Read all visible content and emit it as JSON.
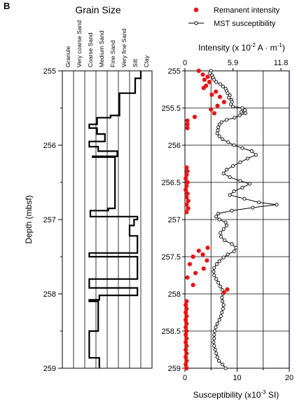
{
  "panel_label": "B",
  "chart_data": [
    {
      "type": "line",
      "title": "Grain Size",
      "ylabel": "Depth (mbsf)",
      "ylim": [
        255,
        259
      ],
      "y_ticks": [
        "255",
        "256",
        "257",
        "258",
        "259"
      ],
      "categories": [
        "Granule",
        "Very coarse Sand",
        "Coarse Sand",
        "Medium Sand",
        "Fine Sand",
        "Very fine Sand",
        "Silt",
        "Clay"
      ],
      "series": [
        {
          "points": [
            {
              "depth": 255.0,
              "grain": 7.0
            },
            {
              "depth": 255.1,
              "grain": 7.0
            },
            {
              "depth": 255.1,
              "grain": 6.5
            },
            {
              "depth": 255.3,
              "grain": 6.5
            },
            {
              "depth": 255.3,
              "grain": 5.1
            },
            {
              "depth": 255.6,
              "grain": 5.1
            },
            {
              "depth": 255.6,
              "grain": 4.3
            },
            {
              "depth": 255.63,
              "grain": 4.3
            },
            {
              "depth": 255.63,
              "grain": 3.1
            },
            {
              "depth": 255.72,
              "grain": 3.1
            },
            {
              "depth": 255.72,
              "grain": 2.4
            },
            {
              "depth": 255.77,
              "grain": 2.4
            },
            {
              "depth": 255.77,
              "grain": 3.1
            },
            {
              "depth": 255.85,
              "grain": 3.1
            },
            {
              "depth": 255.85,
              "grain": 3.8
            },
            {
              "depth": 255.95,
              "grain": 3.8
            },
            {
              "depth": 255.95,
              "grain": 2.4
            },
            {
              "depth": 256.02,
              "grain": 2.4
            },
            {
              "depth": 256.02,
              "grain": 3.2
            },
            {
              "depth": 256.08,
              "grain": 3.2
            },
            {
              "depth": 256.08,
              "grain": 4.9
            },
            {
              "depth": 256.15,
              "grain": 4.9
            },
            {
              "depth": 256.15,
              "grain": 2.7
            },
            {
              "depth": 256.16,
              "grain": 2.7
            },
            {
              "depth": 256.16,
              "grain": 4.7
            },
            {
              "depth": 256.85,
              "grain": 4.7
            },
            {
              "depth": 256.85,
              "grain": 4.1
            },
            {
              "depth": 256.88,
              "grain": 4.1
            },
            {
              "depth": 256.88,
              "grain": 2.5
            },
            {
              "depth": 256.96,
              "grain": 2.5
            },
            {
              "depth": 256.96,
              "grain": 6.7
            },
            {
              "depth": 257.0,
              "grain": 6.7
            },
            {
              "depth": 257.0,
              "grain": 6.4
            },
            {
              "depth": 257.08,
              "grain": 6.4
            },
            {
              "depth": 257.08,
              "grain": 6.0
            },
            {
              "depth": 257.22,
              "grain": 6.0
            },
            {
              "depth": 257.22,
              "grain": 6.7
            },
            {
              "depth": 257.45,
              "grain": 6.7
            },
            {
              "depth": 257.45,
              "grain": 2.4
            },
            {
              "depth": 257.5,
              "grain": 2.4
            },
            {
              "depth": 257.5,
              "grain": 6.7
            },
            {
              "depth": 257.8,
              "grain": 6.7
            },
            {
              "depth": 257.8,
              "grain": 2.4
            },
            {
              "depth": 257.92,
              "grain": 2.4
            },
            {
              "depth": 257.92,
              "grain": 6.7
            },
            {
              "depth": 258.02,
              "grain": 6.7
            },
            {
              "depth": 258.02,
              "grain": 3.3
            },
            {
              "depth": 258.08,
              "grain": 3.3
            },
            {
              "depth": 258.08,
              "grain": 2.4
            },
            {
              "depth": 258.1,
              "grain": 2.4
            },
            {
              "depth": 258.1,
              "grain": 3.2
            },
            {
              "depth": 258.5,
              "grain": 3.2
            },
            {
              "depth": 258.5,
              "grain": 2.4
            },
            {
              "depth": 258.86,
              "grain": 2.4
            },
            {
              "depth": 258.86,
              "grain": 3.3
            },
            {
              "depth": 259.0,
              "grain": 3.3
            }
          ]
        }
      ]
    },
    {
      "type": "scatter",
      "legend": [
        "Remanent intensity",
        "MST susceptibility"
      ],
      "legend_position": "top",
      "x_top_label": "Intensity (x 10-2 A · m-1)",
      "x_top_ticks": [
        "0",
        "5.9",
        "11.8"
      ],
      "x_top_range": [
        0,
        11.8
      ],
      "x_bottom_label": "Susceptibility (x10-3 SI)",
      "x_bottom_ticks": [
        "0",
        "10",
        "20"
      ],
      "x_bottom_range": [
        0,
        20
      ],
      "y_ticks": [
        "255",
        "255.5",
        "256",
        "256.5",
        "257",
        "257.5",
        "258",
        "258.5",
        "259"
      ],
      "ylim": [
        255,
        259
      ],
      "grid": "vertical at 5, 10, 15 and horizontal every 0.5",
      "series": [
        {
          "name": "Remanent intensity",
          "color": "#ee1111",
          "points": [
            {
              "depth": 255.0,
              "x": 1.7
            },
            {
              "depth": 255.05,
              "x": 2.2
            },
            {
              "depth": 255.08,
              "x": 2.8
            },
            {
              "depth": 255.12,
              "x": 2.4
            },
            {
              "depth": 255.15,
              "x": 3.0
            },
            {
              "depth": 255.2,
              "x": 2.6
            },
            {
              "depth": 255.23,
              "x": 2.3
            },
            {
              "depth": 255.28,
              "x": 3.8
            },
            {
              "depth": 255.32,
              "x": 3.3
            },
            {
              "depth": 255.35,
              "x": 4.3
            },
            {
              "depth": 255.42,
              "x": 4.8
            },
            {
              "depth": 255.47,
              "x": 4.0
            },
            {
              "depth": 255.52,
              "x": 3.2
            },
            {
              "depth": 255.57,
              "x": 3.6
            },
            {
              "depth": 255.62,
              "x": 1.2
            },
            {
              "depth": 255.67,
              "x": 0.3
            },
            {
              "depth": 255.72,
              "x": 0.3
            },
            {
              "depth": 255.77,
              "x": 0.3
            },
            {
              "depth": 256.3,
              "x": 0.2
            },
            {
              "depth": 256.35,
              "x": 0.3
            },
            {
              "depth": 256.4,
              "x": 0.2
            },
            {
              "depth": 256.45,
              "x": 0.1
            },
            {
              "depth": 256.5,
              "x": 0.3
            },
            {
              "depth": 256.55,
              "x": 0.2
            },
            {
              "depth": 256.6,
              "x": 0.1
            },
            {
              "depth": 256.65,
              "x": 0.3
            },
            {
              "depth": 256.7,
              "x": 0.2
            },
            {
              "depth": 256.75,
              "x": 0.4
            },
            {
              "depth": 256.8,
              "x": 0.2
            },
            {
              "depth": 256.85,
              "x": 0.4
            },
            {
              "depth": 256.9,
              "x": 0.2
            },
            {
              "depth": 257.38,
              "x": 2.8
            },
            {
              "depth": 257.42,
              "x": 1.7
            },
            {
              "depth": 257.47,
              "x": 2.2
            },
            {
              "depth": 257.5,
              "x": 1.0
            },
            {
              "depth": 257.55,
              "x": 2.7
            },
            {
              "depth": 257.6,
              "x": 0.6
            },
            {
              "depth": 257.66,
              "x": 2.3
            },
            {
              "depth": 257.72,
              "x": 1.3
            },
            {
              "depth": 257.78,
              "x": 0.3
            },
            {
              "depth": 257.88,
              "x": 1.0
            },
            {
              "depth": 257.94,
              "x": 5.2
            },
            {
              "depth": 257.98,
              "x": 4.8
            },
            {
              "depth": 258.1,
              "x": 0.2
            },
            {
              "depth": 258.15,
              "x": 0.1
            },
            {
              "depth": 258.2,
              "x": 0.2
            },
            {
              "depth": 258.25,
              "x": 0.1
            },
            {
              "depth": 258.3,
              "x": 0.2
            },
            {
              "depth": 258.35,
              "x": 0.1
            },
            {
              "depth": 258.4,
              "x": 0.2
            },
            {
              "depth": 258.45,
              "x": 0.1
            },
            {
              "depth": 258.5,
              "x": 0.2
            },
            {
              "depth": 258.55,
              "x": 0.1
            },
            {
              "depth": 258.6,
              "x": 0.2
            },
            {
              "depth": 258.65,
              "x": 0.1
            },
            {
              "depth": 258.7,
              "x": 0.2
            },
            {
              "depth": 258.75,
              "x": 0.1
            },
            {
              "depth": 258.8,
              "x": 0.2
            },
            {
              "depth": 258.85,
              "x": 0.1
            },
            {
              "depth": 258.9,
              "x": 0.2
            },
            {
              "depth": 258.95,
              "x": 0.1
            },
            {
              "depth": 259.0,
              "x": 0.2
            }
          ]
        },
        {
          "name": "MST susceptibility",
          "color": "#000000",
          "points": [
            {
              "depth": 255.0,
              "x": 5.0
            },
            {
              "depth": 255.03,
              "x": 4.8
            },
            {
              "depth": 255.06,
              "x": 5.2
            },
            {
              "depth": 255.09,
              "x": 5.4
            },
            {
              "depth": 255.12,
              "x": 5.6
            },
            {
              "depth": 255.15,
              "x": 6.0
            },
            {
              "depth": 255.18,
              "x": 6.8
            },
            {
              "depth": 255.21,
              "x": 7.3
            },
            {
              "depth": 255.24,
              "x": 7.8
            },
            {
              "depth": 255.27,
              "x": 8.0
            },
            {
              "depth": 255.3,
              "x": 8.2
            },
            {
              "depth": 255.33,
              "x": 8.6
            },
            {
              "depth": 255.36,
              "x": 8.4
            },
            {
              "depth": 255.39,
              "x": 8.9
            },
            {
              "depth": 255.42,
              "x": 9.0
            },
            {
              "depth": 255.45,
              "x": 8.8
            },
            {
              "depth": 255.48,
              "x": 9.2
            },
            {
              "depth": 255.5,
              "x": 11.0
            },
            {
              "depth": 255.53,
              "x": 11.5
            },
            {
              "depth": 255.55,
              "x": 10.8
            },
            {
              "depth": 255.57,
              "x": 11.6
            },
            {
              "depth": 255.6,
              "x": 10.5
            },
            {
              "depth": 255.63,
              "x": 9.5
            },
            {
              "depth": 255.66,
              "x": 8.0
            },
            {
              "depth": 255.69,
              "x": 7.0
            },
            {
              "depth": 255.72,
              "x": 6.6
            },
            {
              "depth": 255.76,
              "x": 6.4
            },
            {
              "depth": 255.8,
              "x": 6.3
            },
            {
              "depth": 255.84,
              "x": 6.2
            },
            {
              "depth": 255.88,
              "x": 6.6
            },
            {
              "depth": 255.92,
              "x": 7.2
            },
            {
              "depth": 255.96,
              "x": 8.3
            },
            {
              "depth": 256.0,
              "x": 9.4
            },
            {
              "depth": 256.04,
              "x": 11.0
            },
            {
              "depth": 256.08,
              "x": 12.8
            },
            {
              "depth": 256.13,
              "x": 13.6
            },
            {
              "depth": 256.18,
              "x": 12.0
            },
            {
              "depth": 256.23,
              "x": 10.6
            },
            {
              "depth": 256.28,
              "x": 9.2
            },
            {
              "depth": 256.33,
              "x": 8.0
            },
            {
              "depth": 256.38,
              "x": 7.4
            },
            {
              "depth": 256.43,
              "x": 8.6
            },
            {
              "depth": 256.48,
              "x": 10.6
            },
            {
              "depth": 256.52,
              "x": 12.4
            },
            {
              "depth": 256.57,
              "x": 11.0
            },
            {
              "depth": 256.62,
              "x": 9.4
            },
            {
              "depth": 256.67,
              "x": 8.6
            },
            {
              "depth": 256.72,
              "x": 11.4
            },
            {
              "depth": 256.77,
              "x": 14.2
            },
            {
              "depth": 256.8,
              "x": 17.6
            },
            {
              "depth": 256.84,
              "x": 13.0
            },
            {
              "depth": 256.88,
              "x": 9.0
            },
            {
              "depth": 256.92,
              "x": 6.4
            },
            {
              "depth": 256.96,
              "x": 6.0
            },
            {
              "depth": 257.0,
              "x": 6.6
            },
            {
              "depth": 257.04,
              "x": 7.8
            },
            {
              "depth": 257.08,
              "x": 8.0
            },
            {
              "depth": 257.13,
              "x": 7.4
            },
            {
              "depth": 257.18,
              "x": 6.8
            },
            {
              "depth": 257.23,
              "x": 6.9
            },
            {
              "depth": 257.28,
              "x": 7.6
            },
            {
              "depth": 257.33,
              "x": 9.0
            },
            {
              "depth": 257.38,
              "x": 9.8
            },
            {
              "depth": 257.43,
              "x": 9.4
            },
            {
              "depth": 257.47,
              "x": 8.2
            },
            {
              "depth": 257.51,
              "x": 7.4
            },
            {
              "depth": 257.56,
              "x": 6.6
            },
            {
              "depth": 257.6,
              "x": 6.1
            },
            {
              "depth": 257.65,
              "x": 5.6
            },
            {
              "depth": 257.7,
              "x": 5.5
            },
            {
              "depth": 257.75,
              "x": 5.6
            },
            {
              "depth": 257.8,
              "x": 6.0
            },
            {
              "depth": 257.85,
              "x": 6.4
            },
            {
              "depth": 257.9,
              "x": 6.8
            },
            {
              "depth": 257.95,
              "x": 7.2
            },
            {
              "depth": 258.0,
              "x": 7.3
            },
            {
              "depth": 258.05,
              "x": 7.1
            },
            {
              "depth": 258.1,
              "x": 7.2
            },
            {
              "depth": 258.15,
              "x": 7.4
            },
            {
              "depth": 258.2,
              "x": 7.3
            },
            {
              "depth": 258.25,
              "x": 7.1
            },
            {
              "depth": 258.3,
              "x": 6.9
            },
            {
              "depth": 258.35,
              "x": 6.6
            },
            {
              "depth": 258.4,
              "x": 6.2
            },
            {
              "depth": 258.45,
              "x": 5.9
            },
            {
              "depth": 258.5,
              "x": 5.7
            },
            {
              "depth": 258.55,
              "x": 5.6
            },
            {
              "depth": 258.6,
              "x": 5.6
            },
            {
              "depth": 258.65,
              "x": 5.5
            },
            {
              "depth": 258.7,
              "x": 5.6
            },
            {
              "depth": 258.75,
              "x": 5.8
            },
            {
              "depth": 258.8,
              "x": 6.0
            },
            {
              "depth": 258.85,
              "x": 6.2
            },
            {
              "depth": 258.9,
              "x": 6.5
            },
            {
              "depth": 258.95,
              "x": 7.2
            },
            {
              "depth": 259.0,
              "x": 7.8
            }
          ]
        }
      ]
    }
  ]
}
